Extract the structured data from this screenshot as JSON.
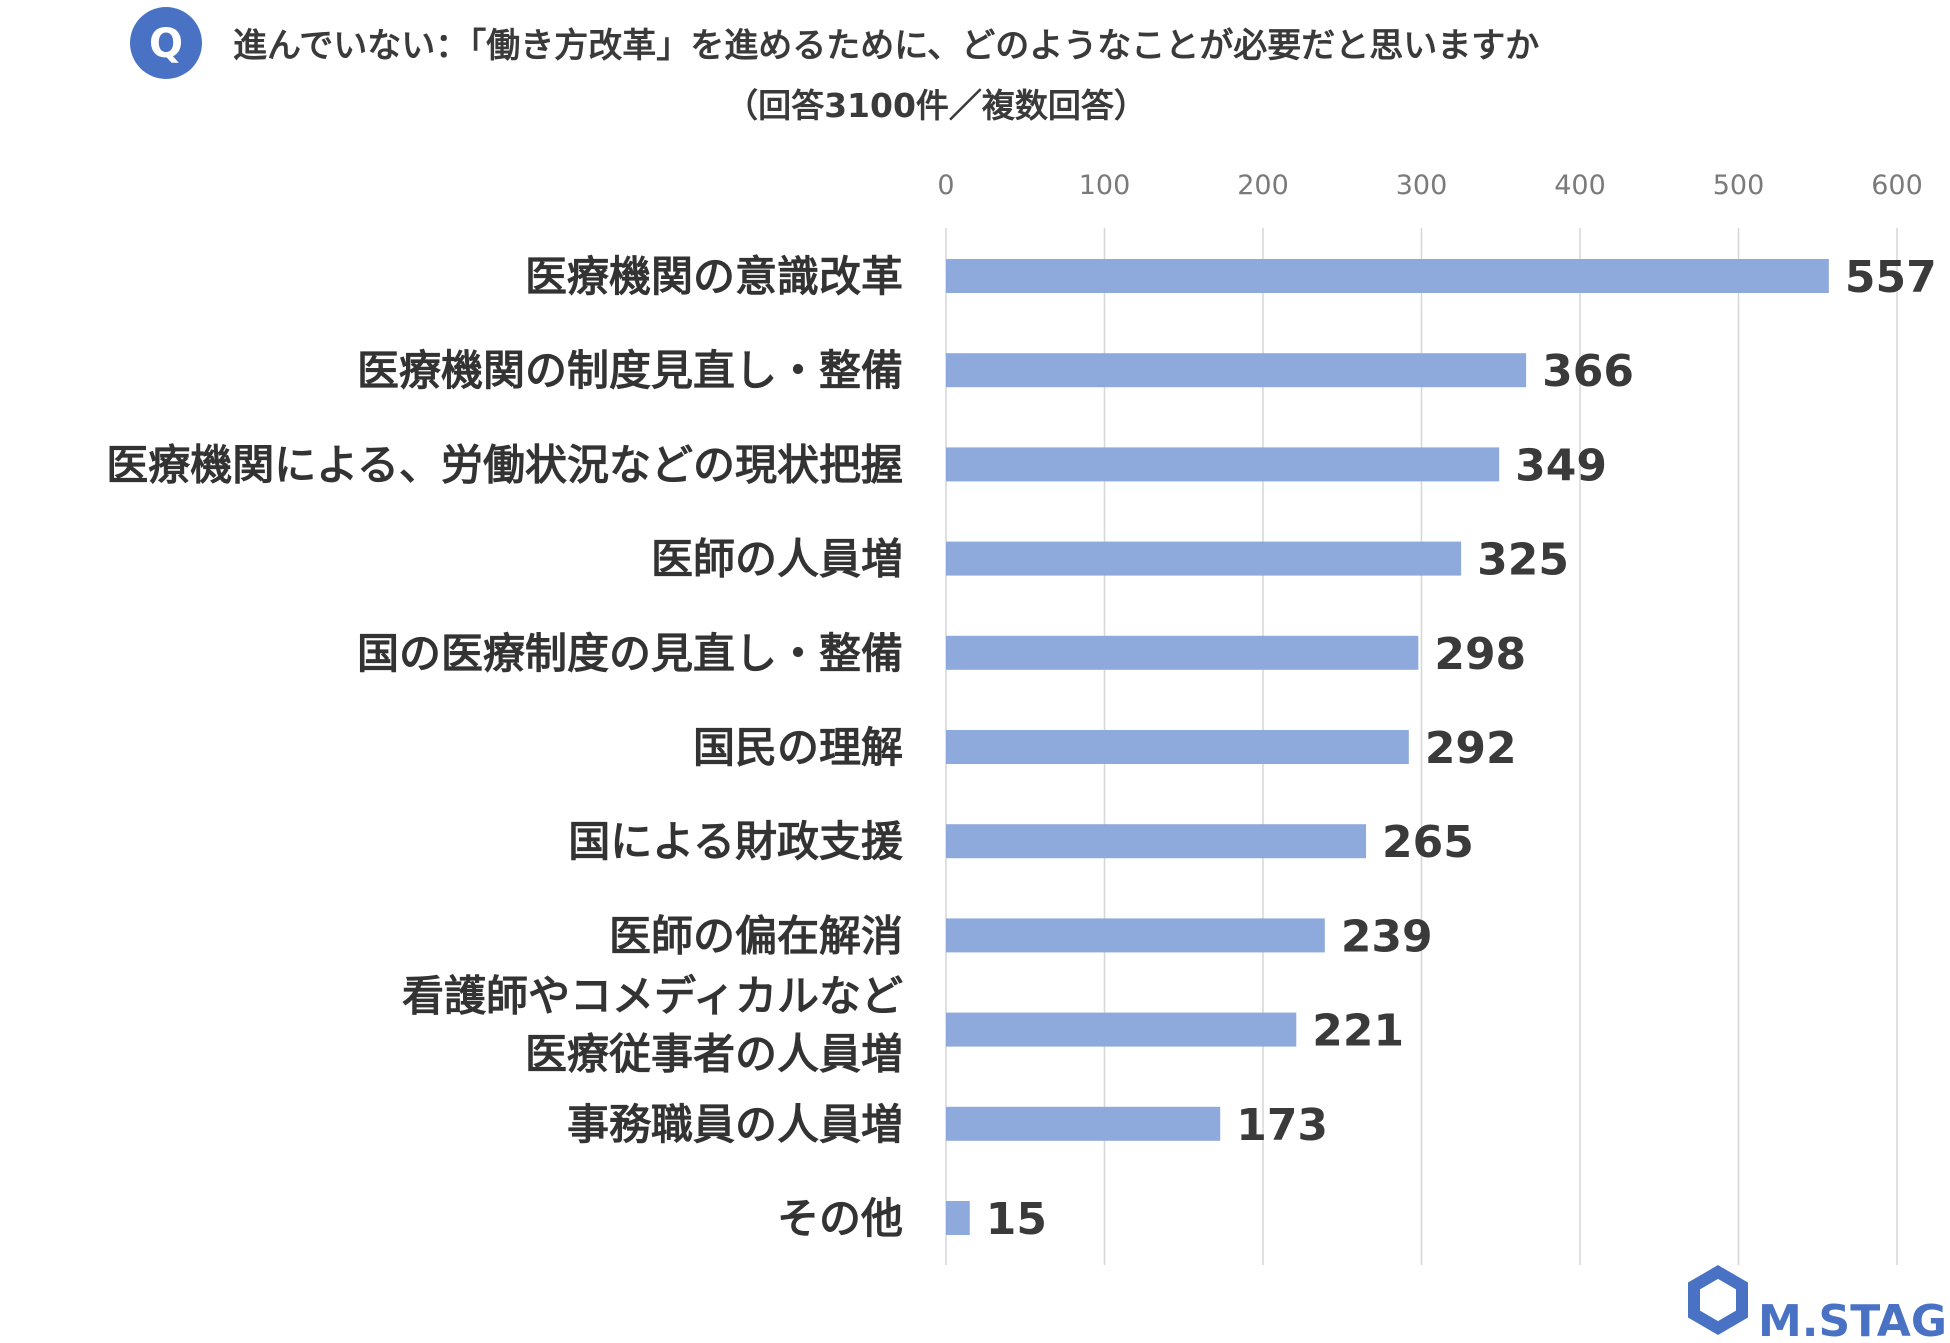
{
  "question": {
    "badge": "Q",
    "title": "進んでいない：「働き方改革」を進めるために、どのようなことが必要だと思いますか",
    "subtitle": "（回答3100件／複数回答）"
  },
  "logo": {
    "text": "M.STAGE"
  },
  "colors": {
    "bar": "#8eaadc",
    "badge": "#4a72c4",
    "logo": "#4a72c4"
  },
  "chart_data": {
    "type": "bar",
    "orientation": "horizontal",
    "title": "進んでいない：「働き方改革」を進めるために、どのようなことが必要だと思いますか",
    "subtitle": "（回答3100件／複数回答）",
    "categories": [
      [
        "医療機関の意識改革"
      ],
      [
        "医療機関の制度見直し・整備"
      ],
      [
        "医療機関による、労働状況などの現状把握"
      ],
      [
        "医師の人員増"
      ],
      [
        "国の医療制度の見直し・整備"
      ],
      [
        "国民の理解"
      ],
      [
        "国による財政支援"
      ],
      [
        "医師の偏在解消"
      ],
      [
        "看護師やコメディカルなど",
        "医療従事者の人員増"
      ],
      [
        "事務職員の人員増"
      ],
      [
        "その他"
      ]
    ],
    "values": [
      557,
      366,
      349,
      325,
      298,
      292,
      265,
      239,
      221,
      173,
      15
    ],
    "xlim": [
      0,
      600
    ],
    "ticks": [
      0,
      100,
      200,
      300,
      400,
      500,
      600
    ],
    "tick_labels": [
      "0",
      "100",
      "200",
      "300",
      "400",
      "500",
      "600"
    ],
    "axis_position": "top",
    "grid": true,
    "data_labels": true
  }
}
